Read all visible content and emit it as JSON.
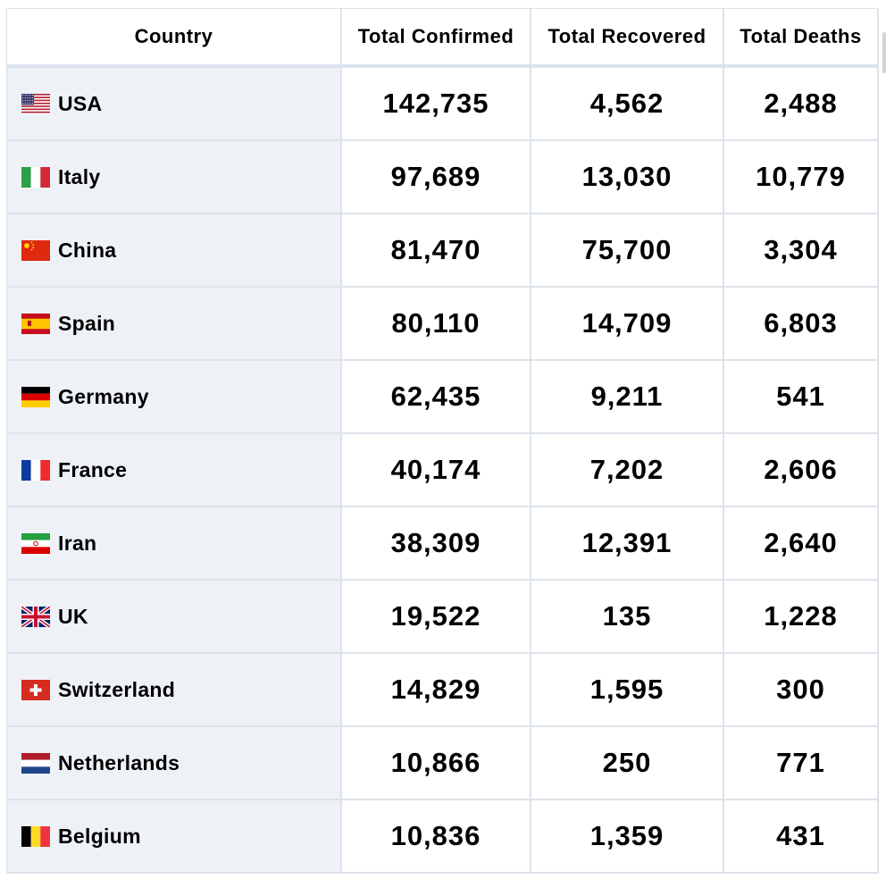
{
  "table": {
    "headers": {
      "country": "Country",
      "confirmed": "Total Confirmed",
      "recovered": "Total Recovered",
      "deaths": "Total Deaths"
    },
    "rows": [
      {
        "country": "USA",
        "flag_icon": "usa-flag-icon",
        "confirmed": "142,735",
        "recovered": "4,562",
        "deaths": "2,488"
      },
      {
        "country": "Italy",
        "flag_icon": "italy-flag-icon",
        "confirmed": "97,689",
        "recovered": "13,030",
        "deaths": "10,779"
      },
      {
        "country": "China",
        "flag_icon": "china-flag-icon",
        "confirmed": "81,470",
        "recovered": "75,700",
        "deaths": "3,304"
      },
      {
        "country": "Spain",
        "flag_icon": "spain-flag-icon",
        "confirmed": "80,110",
        "recovered": "14,709",
        "deaths": "6,803"
      },
      {
        "country": "Germany",
        "flag_icon": "germany-flag-icon",
        "confirmed": "62,435",
        "recovered": "9,211",
        "deaths": "541"
      },
      {
        "country": "France",
        "flag_icon": "france-flag-icon",
        "confirmed": "40,174",
        "recovered": "7,202",
        "deaths": "2,606"
      },
      {
        "country": "Iran",
        "flag_icon": "iran-flag-icon",
        "confirmed": "38,309",
        "recovered": "12,391",
        "deaths": "2,640"
      },
      {
        "country": "UK",
        "flag_icon": "uk-flag-icon",
        "confirmed": "19,522",
        "recovered": "135",
        "deaths": "1,228"
      },
      {
        "country": "Switzerland",
        "flag_icon": "switzerland-flag-icon",
        "confirmed": "14,829",
        "recovered": "1,595",
        "deaths": "300"
      },
      {
        "country": "Netherlands",
        "flag_icon": "netherlands-flag-icon",
        "confirmed": "10,866",
        "recovered": "250",
        "deaths": "771"
      },
      {
        "country": "Belgium",
        "flag_icon": "belgium-flag-icon",
        "confirmed": "10,836",
        "recovered": "1,359",
        "deaths": "431"
      }
    ]
  },
  "colors": {
    "country_column_bg": "#eef2f7",
    "border": "#dde3ea"
  }
}
